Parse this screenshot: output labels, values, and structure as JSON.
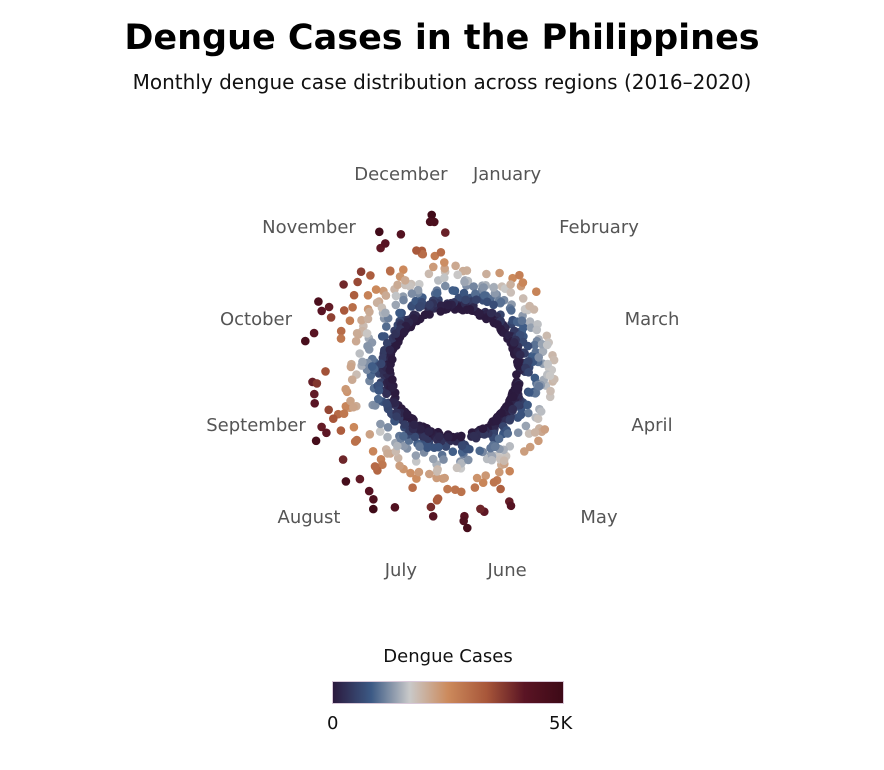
{
  "title": "Dengue Cases in the Philippines",
  "subtitle": "Monthly dengue case distribution across regions (2016–2020)",
  "legend": {
    "title": "Dengue Cases",
    "min_label": "0",
    "max_label": "5K",
    "colors": [
      "#2b1a3e",
      "#3c5a85",
      "#c9c9c9",
      "#cc8a5c",
      "#a8573a",
      "#5a1424",
      "#3d0a17"
    ]
  },
  "chart_data": {
    "type": "scatter",
    "coordinate_system": "polar",
    "angle_categories": [
      "January",
      "February",
      "March",
      "April",
      "May",
      "June",
      "July",
      "August",
      "September",
      "October",
      "November",
      "December"
    ],
    "radius_variable": "Dengue Cases",
    "color_variable": "Dengue Cases",
    "color_range": [
      0,
      5000
    ],
    "grid": false,
    "legend_position": "bottom",
    "approx_point_ranges_by_month": [
      {
        "month": "January",
        "min": 0,
        "max": 2400
      },
      {
        "month": "February",
        "min": 0,
        "max": 2800
      },
      {
        "month": "March",
        "min": 0,
        "max": 2100
      },
      {
        "month": "April",
        "min": 0,
        "max": 2000
      },
      {
        "month": "May",
        "min": 0,
        "max": 2300
      },
      {
        "month": "June",
        "min": 0,
        "max": 4800
      },
      {
        "month": "July",
        "min": 0,
        "max": 4800
      },
      {
        "month": "August",
        "min": 0,
        "max": 5000
      },
      {
        "month": "September",
        "min": 0,
        "max": 5000
      },
      {
        "month": "October",
        "min": 0,
        "max": 4900
      },
      {
        "month": "November",
        "min": 0,
        "max": 4200
      },
      {
        "month": "December",
        "min": 0,
        "max": 4900
      }
    ]
  }
}
